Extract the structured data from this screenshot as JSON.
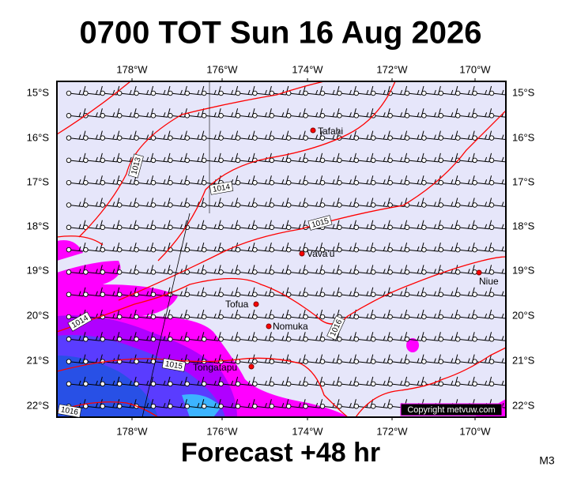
{
  "header": {
    "title": "0700 TOT Sun 16 Aug 2026"
  },
  "map": {
    "lon_labels": [
      "178°W",
      "176°W",
      "174°W",
      "172°W",
      "170°W"
    ],
    "lat_labels": [
      "15°S",
      "16°S",
      "17°S",
      "18°S",
      "19°S",
      "20°S",
      "21°S",
      "22°S"
    ],
    "places": [
      "Tafahi",
      "Vava'u",
      "Niue",
      "Tofua",
      "Nomuka",
      "Tongatapu"
    ],
    "isobar_labels": [
      "1013",
      "1014",
      "1015",
      "1016",
      "1014",
      "1015",
      "1016"
    ]
  },
  "footer": {
    "subtitle": "Forecast +48 hr",
    "code": "M3",
    "copyright": "Copyright metvuw.com"
  }
}
